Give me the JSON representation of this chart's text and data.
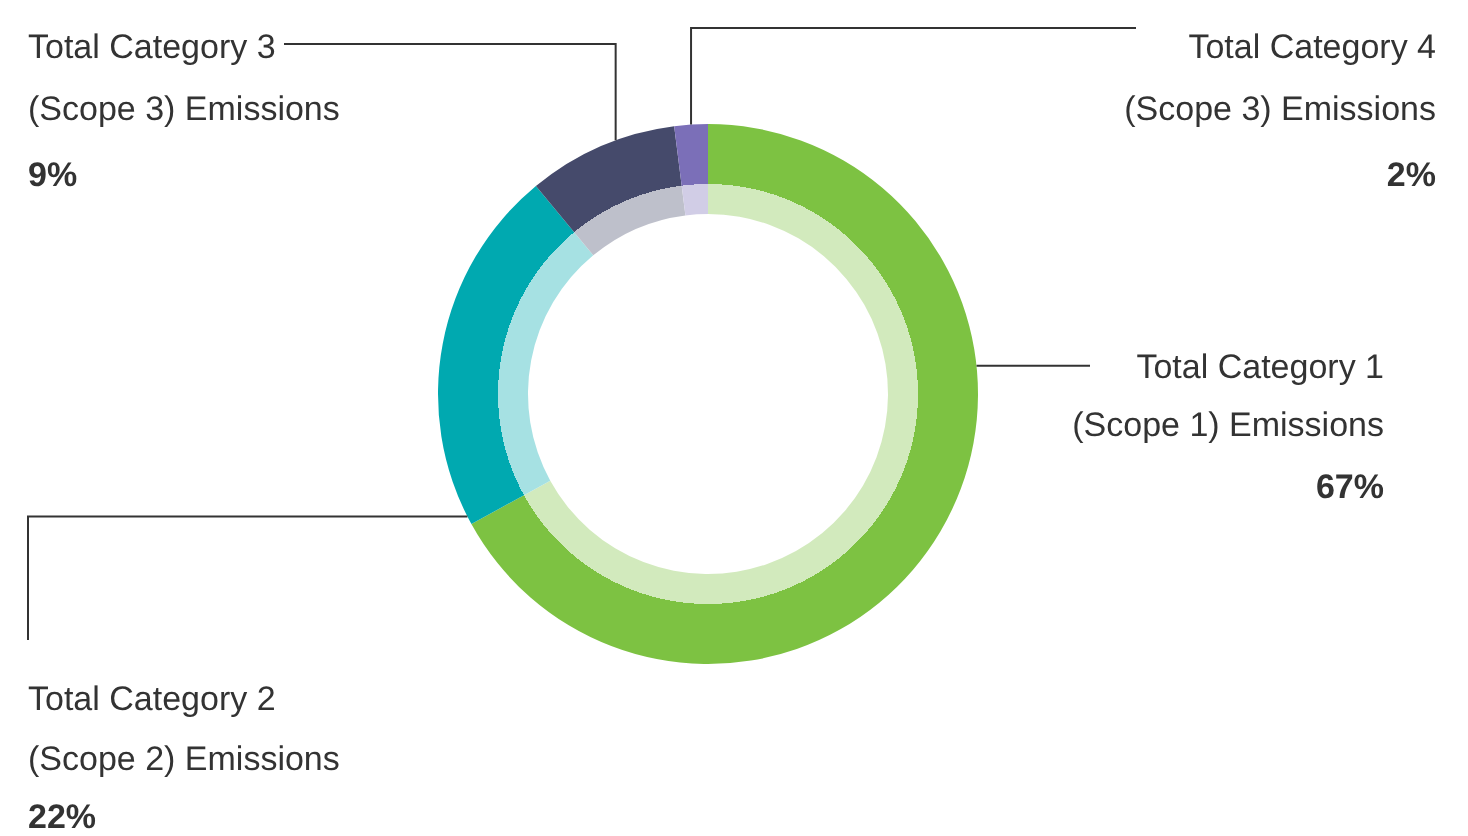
{
  "chart_data": {
    "type": "donut",
    "categories": [
      "Total Category 1 (Scope 1) Emissions",
      "Total Category 2 (Scope 2) Emissions",
      "Total Category 3 (Scope 3) Emissions",
      "Total Category 4 (Scope 3) Emissions"
    ],
    "values": [
      67,
      22,
      9,
      2
    ],
    "value_labels": [
      "67%",
      "22%",
      "9%",
      "2%"
    ],
    "colors": [
      "#7dc242",
      "#00a9b0",
      "#454a6b",
      "#7b6fb8"
    ]
  }
}
